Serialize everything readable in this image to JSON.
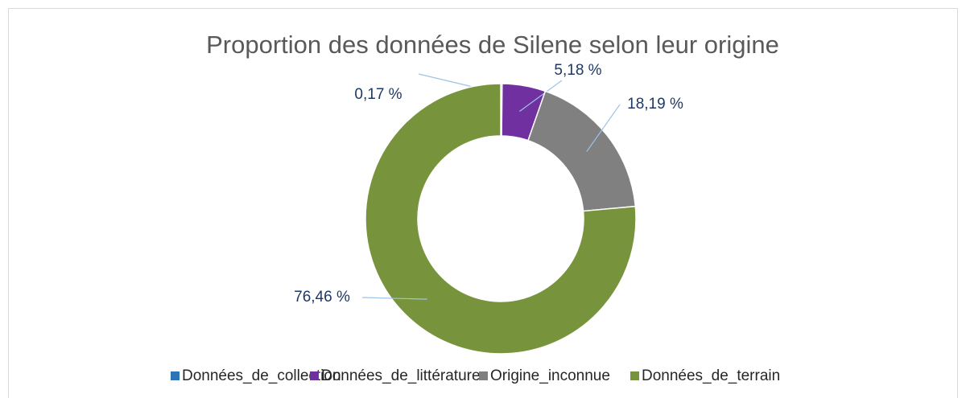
{
  "chart_data": {
    "type": "donut",
    "title": "Proportion des données de Silene selon leur origine",
    "categories": [
      "Données_de_collection",
      "Données_de_littérature",
      "Origine_inconnue",
      "Données_de_terrain"
    ],
    "values": [
      0.17,
      5.18,
      18.19,
      76.46
    ],
    "value_labels": [
      "0,17 %",
      "5,18 %",
      "18,19 %",
      "76,46 %"
    ],
    "colors": [
      "#2e75b6",
      "#7030a0",
      "#808080",
      "#77933c"
    ],
    "legend": "bottom"
  }
}
